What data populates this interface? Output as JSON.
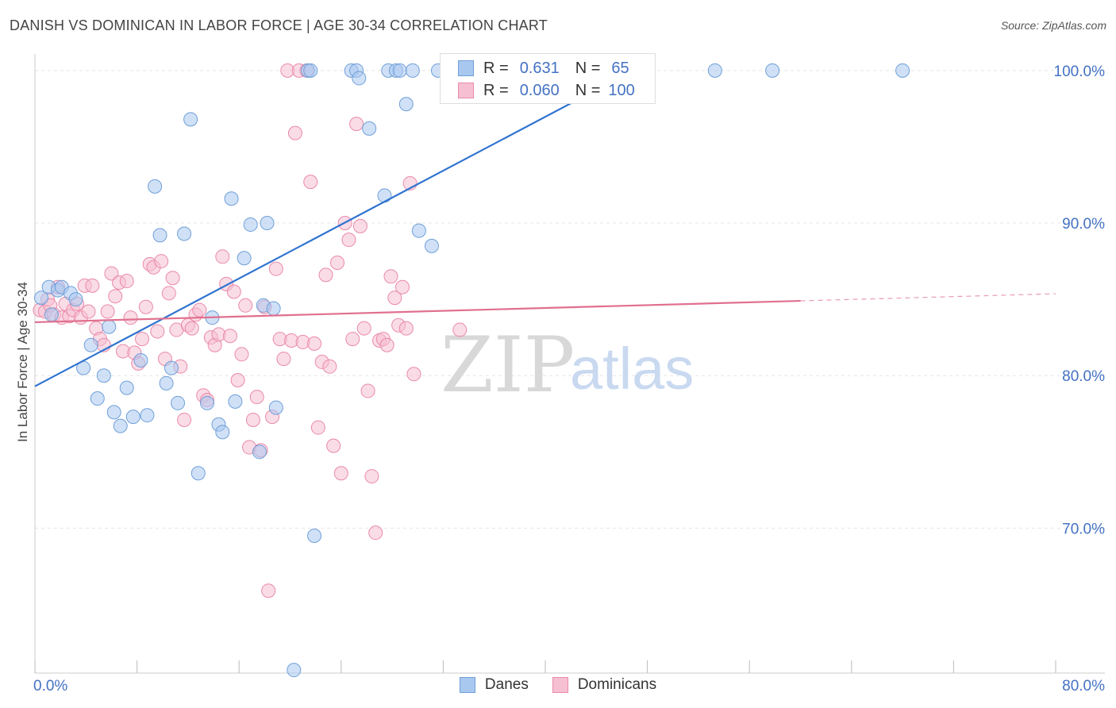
{
  "title": "DANISH VS DOMINICAN IN LABOR FORCE | AGE 30-34 CORRELATION CHART",
  "source": "Source: ZipAtlas.com",
  "watermark": {
    "zip": "ZIP",
    "atlas": "atlas"
  },
  "legend": {
    "r_label": "R =",
    "n_label": "N =",
    "danes": {
      "r": "0.631",
      "n": "65"
    },
    "dominicans": {
      "r": "0.060",
      "n": "100"
    }
  },
  "colors": {
    "danes_fill": "#a9c8f0",
    "danes_stroke": "#6f9fd8",
    "danes_line": "#2f73d0",
    "dominicans_fill": "#f6c0d2",
    "dominicans_stroke": "#e98aaa",
    "dominicans_line": "#e0708f",
    "axis_label": "#4472c4",
    "grid": "#e5e5e5"
  },
  "chart_data": {
    "type": "scatter",
    "title": "DANISH VS DOMINICAN IN LABOR FORCE | AGE 30-34 CORRELATION CHART",
    "xlabel": "",
    "ylabel": "In Labor Force | Age 30-34",
    "xlim": [
      0,
      80
    ],
    "ylim": [
      60.5,
      101.5
    ],
    "x_tick_labels": [
      "0.0%",
      "80.0%"
    ],
    "y_ticks": [
      70,
      80,
      90,
      100
    ],
    "y_tick_labels": [
      "70.0%",
      "80.0%",
      "90.0%",
      "100.0%"
    ],
    "series": [
      {
        "name": "Danes",
        "points": [
          [
            0.5,
            85.1
          ],
          [
            1.1,
            85.8
          ],
          [
            1.3,
            84.0
          ],
          [
            1.8,
            85.6
          ],
          [
            2.1,
            85.8
          ],
          [
            2.8,
            85.4
          ],
          [
            3.2,
            85.0
          ],
          [
            3.8,
            80.5
          ],
          [
            4.4,
            82.0
          ],
          [
            4.9,
            78.5
          ],
          [
            5.4,
            80.0
          ],
          [
            5.8,
            83.2
          ],
          [
            6.2,
            77.6
          ],
          [
            6.7,
            76.7
          ],
          [
            7.2,
            79.2
          ],
          [
            7.7,
            77.3
          ],
          [
            8.3,
            81.0
          ],
          [
            8.8,
            77.4
          ],
          [
            9.4,
            92.4
          ],
          [
            9.8,
            89.2
          ],
          [
            10.3,
            79.5
          ],
          [
            10.7,
            80.5
          ],
          [
            11.2,
            78.2
          ],
          [
            11.7,
            89.3
          ],
          [
            12.2,
            96.8
          ],
          [
            12.8,
            73.6
          ],
          [
            13.5,
            78.2
          ],
          [
            13.9,
            83.8
          ],
          [
            14.4,
            76.8
          ],
          [
            14.7,
            76.3
          ],
          [
            15.4,
            91.6
          ],
          [
            15.7,
            78.3
          ],
          [
            16.4,
            87.7
          ],
          [
            16.9,
            89.9
          ],
          [
            17.6,
            75.0
          ],
          [
            17.9,
            84.6
          ],
          [
            18.2,
            90.0
          ],
          [
            18.7,
            84.4
          ],
          [
            18.9,
            77.9
          ],
          [
            20.3,
            60.7
          ],
          [
            21.4,
            100.0
          ],
          [
            21.6,
            100.0
          ],
          [
            21.9,
            69.5
          ],
          [
            24.8,
            100.0
          ],
          [
            25.2,
            100.0
          ],
          [
            25.4,
            99.5
          ],
          [
            26.2,
            96.2
          ],
          [
            27.4,
            91.8
          ],
          [
            27.7,
            100.0
          ],
          [
            28.3,
            100.0
          ],
          [
            28.6,
            100.0
          ],
          [
            29.1,
            97.8
          ],
          [
            29.6,
            100.0
          ],
          [
            30.1,
            89.5
          ],
          [
            31.1,
            88.5
          ],
          [
            31.6,
            100.0
          ],
          [
            36.2,
            100.0
          ],
          [
            36.8,
            100.0
          ],
          [
            37.5,
            100.0
          ],
          [
            38.1,
            100.0
          ],
          [
            40.0,
            100.0
          ],
          [
            41.4,
            100.0
          ],
          [
            53.3,
            100.0
          ],
          [
            57.8,
            100.0
          ],
          [
            68.0,
            100.0
          ]
        ]
      },
      {
        "name": "Dominicans",
        "points": [
          [
            0.4,
            84.3
          ],
          [
            0.8,
            84.2
          ],
          [
            1.0,
            85.0
          ],
          [
            1.2,
            84.6
          ],
          [
            1.5,
            84.0
          ],
          [
            1.8,
            85.8
          ],
          [
            2.1,
            83.8
          ],
          [
            2.4,
            84.7
          ],
          [
            2.7,
            83.9
          ],
          [
            3.0,
            84.3
          ],
          [
            3.3,
            84.7
          ],
          [
            3.6,
            83.8
          ],
          [
            3.9,
            85.9
          ],
          [
            4.2,
            84.2
          ],
          [
            4.5,
            85.9
          ],
          [
            4.8,
            83.1
          ],
          [
            5.1,
            82.4
          ],
          [
            5.4,
            82.0
          ],
          [
            5.7,
            84.2
          ],
          [
            6.0,
            86.7
          ],
          [
            6.3,
            85.2
          ],
          [
            6.6,
            86.1
          ],
          [
            6.9,
            81.6
          ],
          [
            7.2,
            86.2
          ],
          [
            7.5,
            83.8
          ],
          [
            7.8,
            81.5
          ],
          [
            8.1,
            80.8
          ],
          [
            8.4,
            82.4
          ],
          [
            8.7,
            84.5
          ],
          [
            9.0,
            87.3
          ],
          [
            9.3,
            87.1
          ],
          [
            9.6,
            82.9
          ],
          [
            9.9,
            87.5
          ],
          [
            10.2,
            81.1
          ],
          [
            10.5,
            85.4
          ],
          [
            10.8,
            86.4
          ],
          [
            11.1,
            83.0
          ],
          [
            11.4,
            80.6
          ],
          [
            11.7,
            77.1
          ],
          [
            12.0,
            83.3
          ],
          [
            12.3,
            83.1
          ],
          [
            12.6,
            84.0
          ],
          [
            12.9,
            84.3
          ],
          [
            13.2,
            78.7
          ],
          [
            13.5,
            78.4
          ],
          [
            13.8,
            82.5
          ],
          [
            14.1,
            82.0
          ],
          [
            14.4,
            82.7
          ],
          [
            14.7,
            87.8
          ],
          [
            15.0,
            86.0
          ],
          [
            15.3,
            82.6
          ],
          [
            15.6,
            85.5
          ],
          [
            15.9,
            79.7
          ],
          [
            16.2,
            81.4
          ],
          [
            16.5,
            84.6
          ],
          [
            16.8,
            75.3
          ],
          [
            17.1,
            77.1
          ],
          [
            17.4,
            78.6
          ],
          [
            17.7,
            75.1
          ],
          [
            18.0,
            84.5
          ],
          [
            18.3,
            65.9
          ],
          [
            18.6,
            77.3
          ],
          [
            18.9,
            87.0
          ],
          [
            19.2,
            82.4
          ],
          [
            19.5,
            81.1
          ],
          [
            19.8,
            100.0
          ],
          [
            20.1,
            82.3
          ],
          [
            20.4,
            95.9
          ],
          [
            20.7,
            100.0
          ],
          [
            21.0,
            82.2
          ],
          [
            21.3,
            100.0
          ],
          [
            21.6,
            92.7
          ],
          [
            21.9,
            82.1
          ],
          [
            22.2,
            76.6
          ],
          [
            22.5,
            80.9
          ],
          [
            22.8,
            86.6
          ],
          [
            23.1,
            80.6
          ],
          [
            23.4,
            75.4
          ],
          [
            23.7,
            87.4
          ],
          [
            24.0,
            73.6
          ],
          [
            24.3,
            90.0
          ],
          [
            24.6,
            88.9
          ],
          [
            24.9,
            82.4
          ],
          [
            25.2,
            96.5
          ],
          [
            25.5,
            89.8
          ],
          [
            25.8,
            83.1
          ],
          [
            26.1,
            79.0
          ],
          [
            26.4,
            73.4
          ],
          [
            26.7,
            69.7
          ],
          [
            27.0,
            82.3
          ],
          [
            27.3,
            82.4
          ],
          [
            27.6,
            82.0
          ],
          [
            27.9,
            86.5
          ],
          [
            28.2,
            85.1
          ],
          [
            28.5,
            83.3
          ],
          [
            28.8,
            85.8
          ],
          [
            29.1,
            83.1
          ],
          [
            29.4,
            92.6
          ],
          [
            29.7,
            80.1
          ],
          [
            33.3,
            83.0
          ]
        ]
      }
    ],
    "trendlines": [
      {
        "series": "Danes",
        "x": [
          0,
          48
        ],
        "y": [
          79.3,
          100.5
        ]
      },
      {
        "series": "Dominicans",
        "x": [
          0,
          60
        ],
        "y": [
          83.5,
          84.9
        ],
        "dashed_extension": [
          60,
          80
        ]
      }
    ]
  }
}
